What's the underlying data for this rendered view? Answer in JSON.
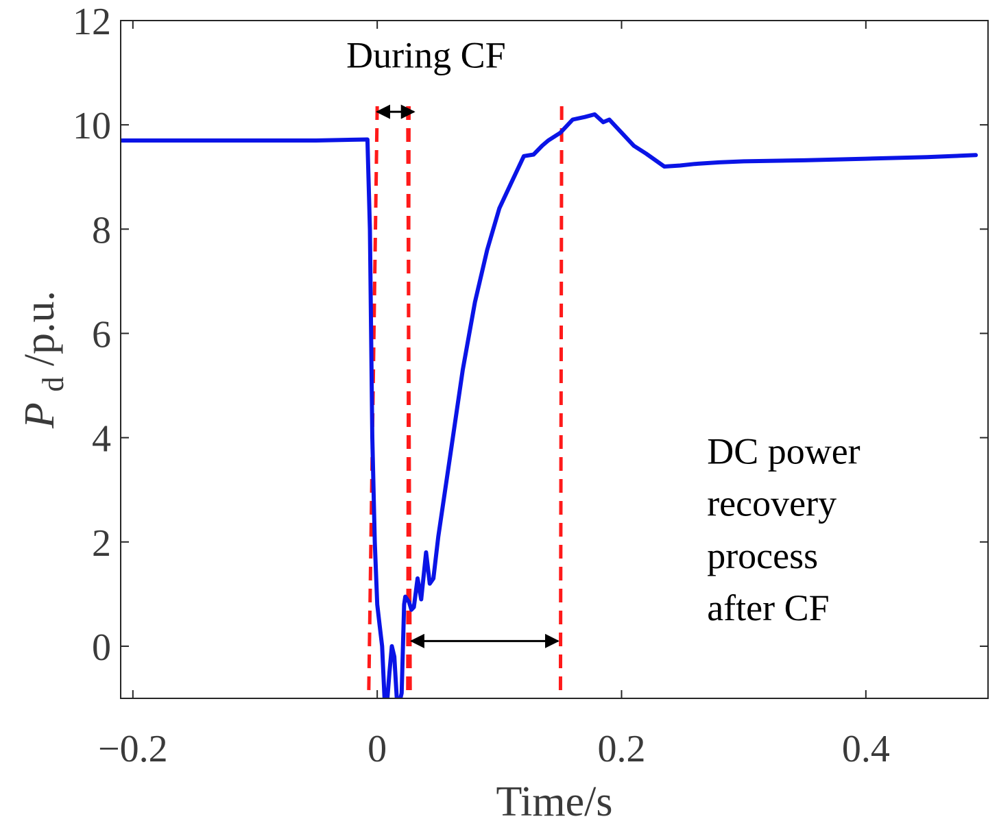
{
  "chart_data": {
    "type": "line",
    "title": "",
    "xlabel": "Time/s",
    "ylabel": {
      "main": "P",
      "subscript": "d",
      "unit": "/p.u."
    },
    "xlim": [
      -0.21,
      0.5
    ],
    "ylim": [
      -1,
      12
    ],
    "x_ticks": [
      -0.2,
      0,
      0.2,
      0.4
    ],
    "x_tick_labels": [
      "−0.2",
      "0",
      "0.2",
      "0.4"
    ],
    "y_ticks": [
      0,
      2,
      4,
      6,
      8,
      10,
      12
    ],
    "y_tick_labels": [
      "0",
      "2",
      "4",
      "6",
      "8",
      "10",
      "12"
    ],
    "grid": false,
    "line_color": "#0a14e6",
    "marker_color": "#ff1a1a",
    "series": [
      {
        "name": "Pd",
        "x": [
          -0.21,
          -0.15,
          -0.1,
          -0.05,
          -0.008,
          -0.006,
          -0.004,
          -0.002,
          0.0,
          0.002,
          0.004,
          0.006,
          0.008,
          0.01,
          0.012,
          0.014,
          0.016,
          0.018,
          0.02,
          0.022,
          0.023,
          0.026,
          0.028,
          0.03,
          0.033,
          0.036,
          0.04,
          0.043,
          0.046,
          0.05,
          0.06,
          0.07,
          0.08,
          0.09,
          0.1,
          0.11,
          0.12,
          0.128,
          0.135,
          0.14,
          0.15,
          0.16,
          0.17,
          0.178,
          0.185,
          0.19,
          0.2,
          0.21,
          0.22,
          0.235,
          0.248,
          0.26,
          0.28,
          0.3,
          0.35,
          0.4,
          0.45,
          0.49
        ],
        "y": [
          9.7,
          9.7,
          9.7,
          9.7,
          9.72,
          8.0,
          4.0,
          2.0,
          0.8,
          0.4,
          0.0,
          -1.0,
          -1.1,
          -0.5,
          0.0,
          -0.2,
          -1.0,
          -1.1,
          -0.9,
          0.8,
          0.95,
          0.85,
          0.7,
          0.75,
          1.3,
          0.9,
          1.8,
          1.2,
          1.3,
          2.1,
          3.7,
          5.3,
          6.6,
          7.6,
          8.4,
          8.9,
          9.4,
          9.43,
          9.6,
          9.7,
          9.85,
          10.1,
          10.15,
          10.2,
          10.05,
          10.1,
          9.85,
          9.6,
          9.45,
          9.2,
          9.22,
          9.25,
          9.28,
          9.3,
          9.32,
          9.35,
          9.38,
          9.42
        ]
      }
    ],
    "vertical_markers": [
      -0.007,
      0.027,
      0.025,
      0.15
    ],
    "marker_style": "dashed",
    "annotations": [
      {
        "text": "During CF",
        "x": 0.04,
        "y": 11.1
      },
      {
        "text": "DC power",
        "x": 0.27,
        "y": 3.5
      },
      {
        "text": "recovery",
        "x": 0.27,
        "y": 2.5
      },
      {
        "text": "process",
        "x": 0.27,
        "y": 1.5
      },
      {
        "text": "after CF",
        "x": 0.27,
        "y": 0.5
      }
    ],
    "arrows": [
      {
        "x1": 0.0,
        "x2": 0.03,
        "y": 10.25
      },
      {
        "x1": 0.028,
        "x2": 0.148,
        "y": 0.1
      }
    ]
  }
}
